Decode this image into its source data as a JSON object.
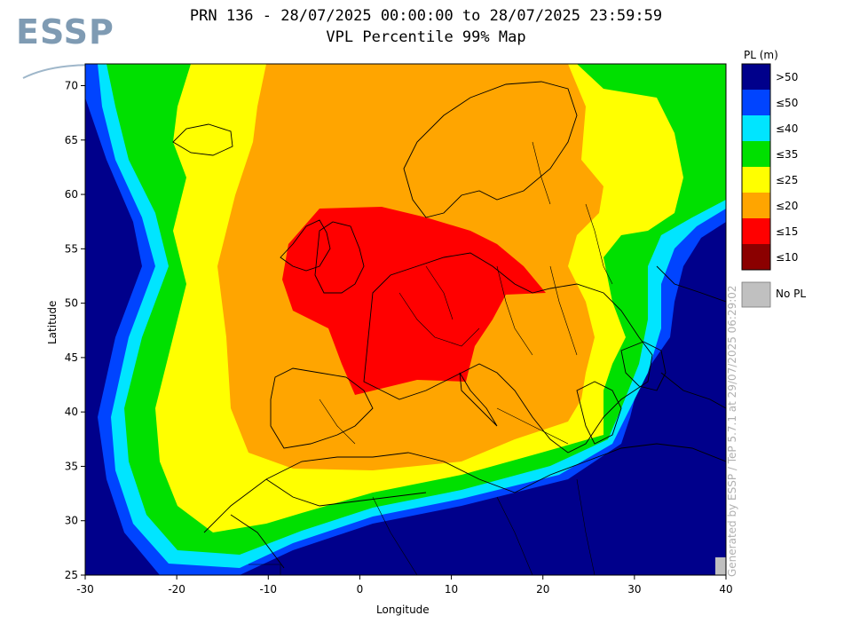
{
  "title_line1": "PRN 136 - 28/07/2025 00:00:00 to 28/07/2025 23:59:59",
  "title_line2": "VPL Percentile 99% Map",
  "logo_text": "ESSP",
  "watermark": "Generated by ESSP / TeP 5.7.1 at 29/07/2025 06:29:02",
  "map": {
    "xlabel": "Longitude",
    "ylabel": "Latitude",
    "xlim": [
      -30,
      40
    ],
    "ylim": [
      25,
      72
    ],
    "xticks": [
      -30,
      -20,
      -10,
      0,
      10,
      20,
      30,
      40
    ],
    "yticks": [
      25,
      30,
      35,
      40,
      45,
      50,
      55,
      60,
      65,
      70
    ],
    "grid": false
  },
  "legend": {
    "title": "PL (m)",
    "items": [
      {
        "label": ">50",
        "color": "#00008b"
      },
      {
        "label": "≤50",
        "color": "#0044ff"
      },
      {
        "label": "≤40",
        "color": "#00e5ff"
      },
      {
        "label": "≤35",
        "color": "#00e000"
      },
      {
        "label": "≤25",
        "color": "#ffff00"
      },
      {
        "label": "≤20",
        "color": "#ffa500"
      },
      {
        "label": "≤15",
        "color": "#ff0000"
      },
      {
        "label": "≤10",
        "color": "#8b0000"
      }
    ],
    "no_pl": {
      "label": "No PL",
      "color": "#c0c0c0"
    }
  }
}
